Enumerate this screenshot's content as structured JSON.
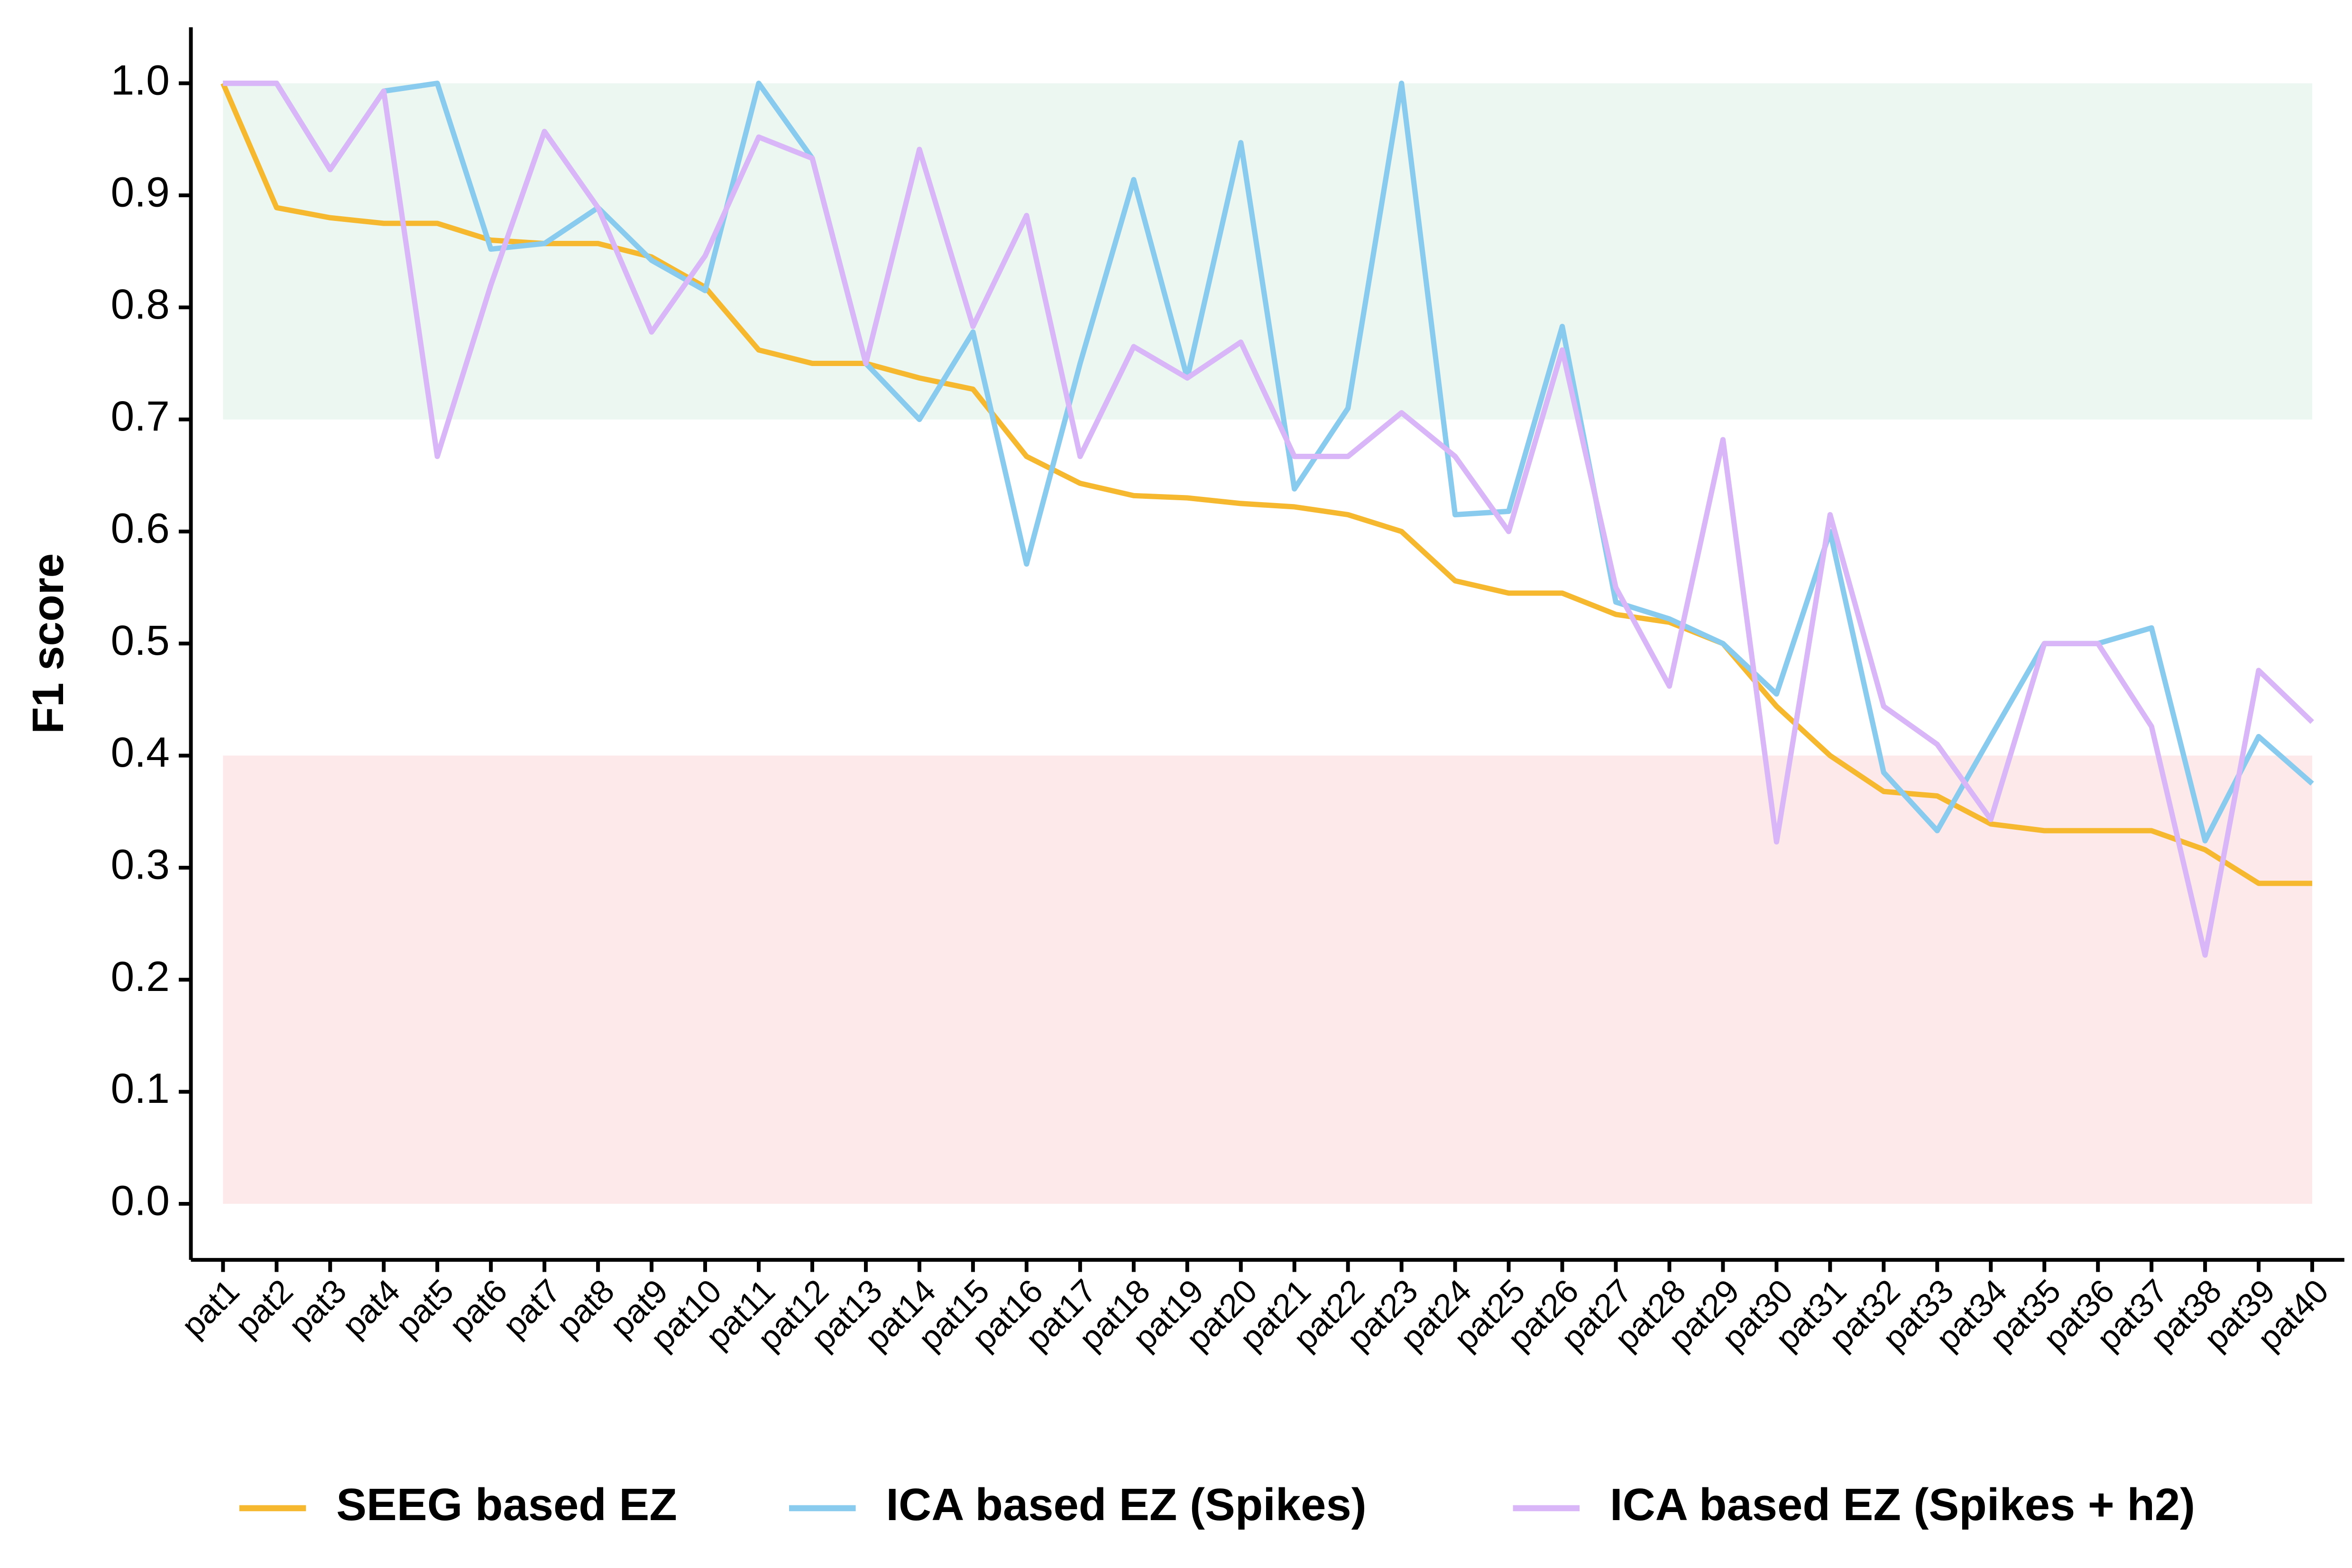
{
  "chart_data": {
    "type": "line",
    "y_label": "F1 score",
    "categories": [
      "pat1",
      "pat2",
      "pat3",
      "pat4",
      "pat5",
      "pat6",
      "pat7",
      "pat8",
      "pat9",
      "pat10",
      "pat11",
      "pat12",
      "pat13",
      "pat14",
      "pat15",
      "pat16",
      "pat17",
      "pat18",
      "pat19",
      "pat20",
      "pat21",
      "pat22",
      "pat23",
      "pat24",
      "pat25",
      "pat26",
      "pat27",
      "pat28",
      "pat29",
      "pat30",
      "pat31",
      "pat32",
      "pat33",
      "pat34",
      "pat35",
      "pat36",
      "pat37",
      "pat38",
      "pat39",
      "pat40"
    ],
    "series": [
      {
        "name": "SEEG based EZ",
        "color": "#f5b82e",
        "values": [
          1.0,
          0.889,
          0.88,
          0.875,
          0.875,
          0.86,
          0.857,
          0.857,
          0.845,
          0.818,
          0.762,
          0.75,
          0.75,
          0.737,
          0.727,
          0.667,
          0.643,
          0.632,
          0.63,
          0.625,
          0.622,
          0.615,
          0.6,
          0.556,
          0.545,
          0.545,
          0.526,
          0.519,
          0.5,
          0.444,
          0.4,
          0.368,
          0.364,
          0.339,
          0.333,
          0.333,
          0.333,
          0.316,
          0.286,
          0.286
        ]
      },
      {
        "name": "ICA based EZ (Spikes)",
        "color": "#88cbee",
        "values": [
          1.0,
          1.0,
          0.923,
          0.993,
          1.0,
          0.852,
          0.857,
          0.889,
          0.842,
          0.815,
          1.0,
          0.933,
          0.75,
          0.7,
          0.778,
          0.571,
          0.75,
          0.914,
          0.737,
          0.947,
          0.638,
          0.71,
          1.0,
          0.615,
          0.618,
          0.783,
          0.537,
          0.522,
          0.5,
          0.455,
          0.6,
          0.385,
          0.333,
          0.417,
          0.5,
          0.5,
          0.514,
          0.324,
          0.417,
          0.375
        ]
      },
      {
        "name": "ICA based EZ (Spikes + h2)",
        "color": "#d9b6f7",
        "values": [
          1.0,
          1.0,
          0.923,
          0.993,
          0.667,
          0.82,
          0.957,
          0.889,
          0.778,
          0.846,
          0.952,
          0.933,
          0.75,
          0.941,
          0.783,
          0.882,
          0.667,
          0.765,
          0.737,
          0.769,
          0.667,
          0.667,
          0.706,
          0.667,
          0.6,
          0.762,
          0.55,
          0.462,
          0.682,
          0.323,
          0.615,
          0.444,
          0.41,
          0.343,
          0.5,
          0.5,
          0.426,
          0.222,
          0.476,
          0.43
        ]
      }
    ],
    "bands": [
      {
        "from": 0.7,
        "to": 1.0,
        "color": "#ebf7f0"
      },
      {
        "from": 0,
        "to": 0.4,
        "color": "#fde9e9"
      }
    ],
    "ylim": [
      -0.05,
      1.05
    ],
    "yticks": [
      {
        "value": 0,
        "label": "0.0"
      },
      0.1,
      0.2,
      0.3,
      0.4,
      0.5,
      0.6,
      0.7,
      0.8,
      0.9,
      {
        "value": 1,
        "label": "1.0"
      }
    ],
    "legend": "bottom"
  }
}
